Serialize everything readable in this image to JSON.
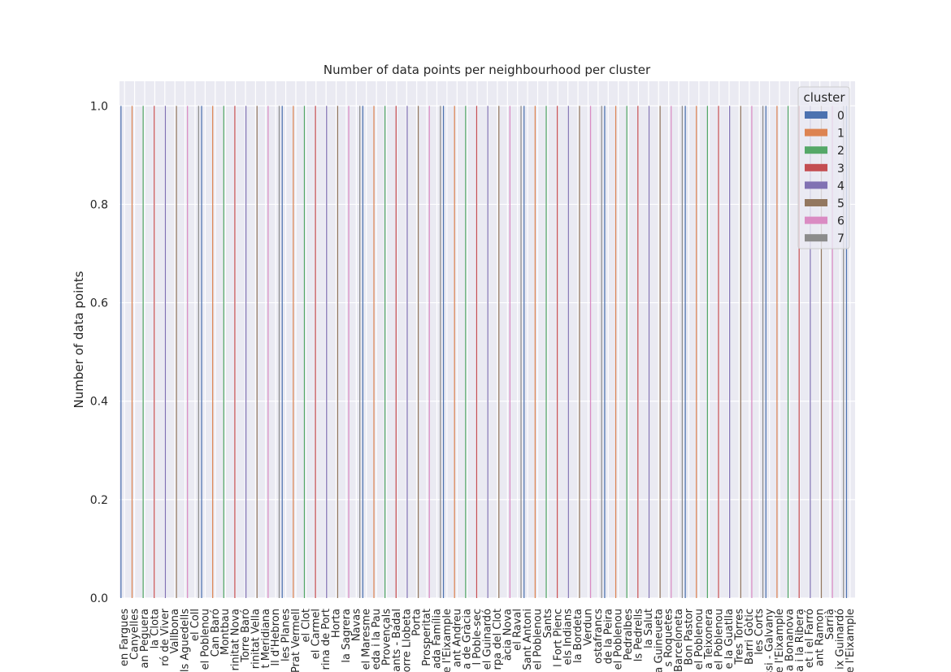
{
  "chart_data": {
    "type": "bar",
    "title": "Number of data points per neighbourhood per cluster",
    "xlabel": "",
    "ylabel": "Number of data points",
    "ylim": [
      0,
      1.05
    ],
    "yticks": [
      "0.0",
      "0.2",
      "0.4",
      "0.6",
      "0.8",
      "1.0"
    ],
    "grid": true,
    "legend": {
      "title": "cluster",
      "placement": "top-right",
      "entries": [
        {
          "label": "0",
          "color": "#4c72b0"
        },
        {
          "label": "1",
          "color": "#dd8452"
        },
        {
          "label": "2",
          "color": "#55a868"
        },
        {
          "label": "3",
          "color": "#c44e52"
        },
        {
          "label": "4",
          "color": "#8172b3"
        },
        {
          "label": "5",
          "color": "#937860"
        },
        {
          "label": "6",
          "color": "#da8bc3"
        },
        {
          "label": "7",
          "color": "#8c8c8c"
        }
      ]
    },
    "categories": [
      "en Fargues",
      "Canyelles",
      "an Peguera",
      "la Clota",
      "ró de Viver",
      "Vallbona",
      "els Aguedells",
      "el Coll",
      "el Poblenou",
      "Can Baró",
      "Montbau",
      "rinitat Nova",
      "Torre Baró",
      "rinitat Vella",
      "t Meridiana",
      "ll d'Hebron",
      "les Planes",
      "Prat Vermell",
      "el Clot",
      "el Carmel",
      "rina de Port",
      "Horta",
      "la Sagrera",
      "Navas",
      "el Maresme",
      "eda i la Pau",
      "Provençals",
      "ants - Badal",
      "orre Llobeta",
      "Porta",
      "Prosperitat",
      "ada Família",
      "e l'Eixample",
      "ant Andreu",
      "a de Gràcia",
      "l Poble-sec",
      "el Guinardó",
      "rpa del Clot",
      "àcia Nova",
      "el Raval",
      "Sant Antoni",
      "el Poblenou",
      "Sants",
      "l Fort Pienc",
      "els Indians",
      "la Bordeta",
      "Verdun",
      "ostafrancs",
      "de la Peira",
      "el Poblenou",
      "Pedralbes",
      "ls Pedrells",
      "la Salut",
      "a Guineueta",
      "s Roquetes",
      "Barceloneta",
      "Bon Pastor",
      "el Poblenou",
      "a Teixonera",
      "el Poblenou",
      "e la Guatlla",
      "Tres Torres",
      "Barri Gòtic",
      "les Corts",
      "ssi - Galvany",
      "e l'Eixample",
      "a Bonanova",
      "a i la Ribera",
      "et i el Farró",
      "ant Ramon",
      "Sarrià",
      "ix Guinardó",
      "e l'Eixample"
    ],
    "values": [
      1,
      1,
      1,
      1,
      1,
      1,
      1,
      1,
      1,
      1,
      1,
      1,
      1,
      1,
      1,
      1,
      1,
      1,
      1,
      1,
      1,
      1,
      1,
      1,
      1,
      1,
      1,
      1,
      1,
      1,
      1,
      1,
      1,
      1,
      1,
      1,
      1,
      1,
      1,
      1,
      1,
      1,
      1,
      1,
      1,
      1,
      1,
      1,
      1,
      1,
      1,
      1,
      1,
      1,
      1,
      1,
      1,
      1,
      1,
      1,
      1,
      1,
      1,
      1,
      1,
      1,
      1,
      1,
      1,
      1,
      1,
      1,
      1
    ],
    "cluster_of_category": [
      0,
      1,
      2,
      3,
      4,
      5,
      6,
      7,
      0,
      1,
      2,
      3,
      4,
      5,
      6,
      7,
      0,
      1,
      2,
      3,
      4,
      5,
      6,
      7,
      0,
      1,
      2,
      3,
      4,
      5,
      6,
      7,
      0,
      1,
      2,
      3,
      4,
      5,
      6,
      7,
      0,
      1,
      2,
      3,
      4,
      5,
      6,
      7,
      0,
      1,
      2,
      3,
      4,
      5,
      6,
      7,
      0,
      1,
      2,
      3,
      4,
      5,
      6,
      7,
      0,
      1,
      2,
      3,
      4,
      5,
      6,
      7,
      0
    ],
    "n_clusters": 8
  }
}
